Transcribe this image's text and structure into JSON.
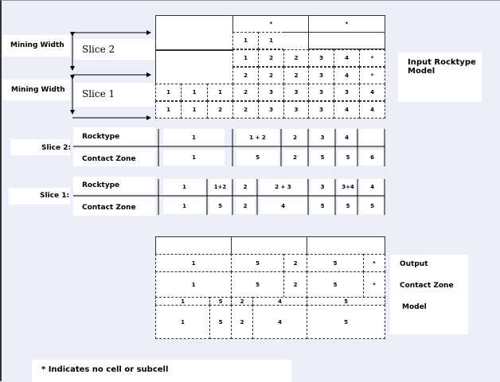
{
  "left_labels": {
    "mining_width_top": "Mining Width",
    "mining_width_bottom": "Mining Width",
    "slice2": "Slice 2",
    "slice1": "Slice 1"
  },
  "input_model": {
    "title": "Input Rocktype Model",
    "rows": [
      [
        "",
        "*",
        "*"
      ],
      [
        "1",
        "1",
        ""
      ],
      [
        "1",
        "2",
        "2",
        "3",
        "4",
        "*"
      ],
      [
        "2",
        "2",
        "2",
        "3",
        "4",
        "*"
      ],
      [
        "1",
        "1",
        "1",
        "2",
        "3",
        "3",
        "3",
        "3",
        "4"
      ],
      [
        "1",
        "1",
        "2",
        "2",
        "3",
        "3",
        "3",
        "4",
        "4"
      ]
    ]
  },
  "slice_tables": {
    "slice2": {
      "label": "Slice 2:",
      "row1_label": "Rocktype",
      "row2_label": "Contact Zone",
      "rocktype": [
        "1",
        "1 + 2",
        "2",
        "3",
        "4",
        ""
      ],
      "contact_zone": [
        "1",
        "5",
        "2",
        "5",
        "5",
        "6"
      ]
    },
    "slice1": {
      "label": "Slice 1:",
      "row1_label": "Rocktype",
      "row2_label": "Contact Zone",
      "rocktype": [
        "1",
        "1+2",
        "2",
        "2 + 3",
        "3",
        "3+4",
        "4"
      ],
      "contact_zone": [
        "1",
        "5",
        "2",
        "4",
        "5",
        "5",
        "5"
      ]
    }
  },
  "output_model": {
    "title_lines": [
      "Output",
      "Contact Zone",
      "Model"
    ],
    "rows": [
      [
        "1",
        "5",
        "2",
        "5",
        "*"
      ],
      [
        "1",
        "5",
        "2",
        "5",
        "*"
      ],
      [
        "1",
        "5",
        "2",
        "4",
        "5"
      ],
      [
        "1",
        "5",
        "2",
        "4",
        "5"
      ]
    ]
  },
  "footnote": "* Indicates no cell or subcell"
}
